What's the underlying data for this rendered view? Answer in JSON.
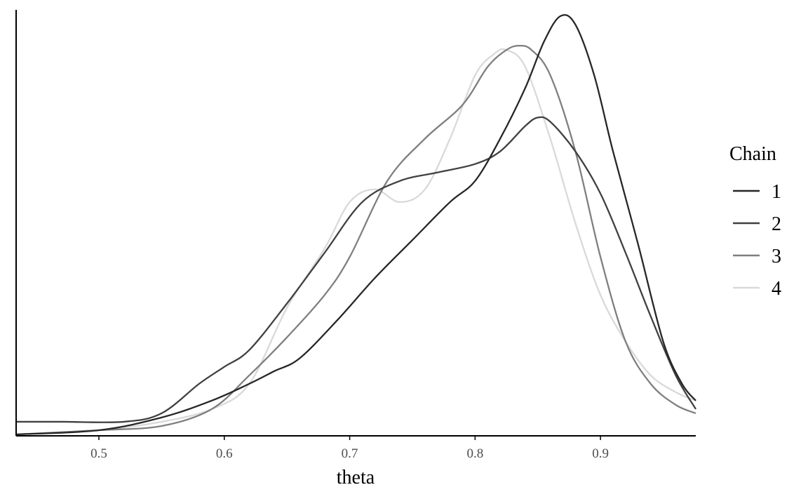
{
  "chart_data": {
    "type": "line",
    "title": "",
    "xlabel": "theta",
    "ylabel": "",
    "xlim": [
      0.434,
      0.976
    ],
    "ylim": [
      0,
      1
    ],
    "x_ticks": [
      "0.5",
      "0.6",
      "0.7",
      "0.8",
      "0.9"
    ],
    "grid": false,
    "legend": {
      "title": "Chain",
      "position": "right"
    },
    "series": [
      {
        "name": "1",
        "color": "#262626",
        "points": [
          [
            0.434,
            0.0
          ],
          [
            0.5,
            0.01
          ],
          [
            0.55,
            0.04
          ],
          [
            0.59,
            0.08
          ],
          [
            0.62,
            0.12
          ],
          [
            0.64,
            0.15
          ],
          [
            0.66,
            0.18
          ],
          [
            0.69,
            0.27
          ],
          [
            0.72,
            0.37
          ],
          [
            0.75,
            0.46
          ],
          [
            0.78,
            0.55
          ],
          [
            0.8,
            0.6
          ],
          [
            0.82,
            0.7
          ],
          [
            0.84,
            0.82
          ],
          [
            0.855,
            0.93
          ],
          [
            0.868,
            0.99
          ],
          [
            0.88,
            0.97
          ],
          [
            0.895,
            0.85
          ],
          [
            0.91,
            0.67
          ],
          [
            0.93,
            0.45
          ],
          [
            0.95,
            0.22
          ],
          [
            0.965,
            0.12
          ],
          [
            0.976,
            0.08
          ]
        ]
      },
      {
        "name": "2",
        "color": "#404040",
        "points": [
          [
            0.434,
            0.03
          ],
          [
            0.47,
            0.03
          ],
          [
            0.52,
            0.03
          ],
          [
            0.55,
            0.05
          ],
          [
            0.58,
            0.12
          ],
          [
            0.6,
            0.16
          ],
          [
            0.62,
            0.2
          ],
          [
            0.65,
            0.31
          ],
          [
            0.68,
            0.43
          ],
          [
            0.71,
            0.55
          ],
          [
            0.74,
            0.6
          ],
          [
            0.77,
            0.62
          ],
          [
            0.8,
            0.64
          ],
          [
            0.82,
            0.67
          ],
          [
            0.84,
            0.73
          ],
          [
            0.85,
            0.75
          ],
          [
            0.86,
            0.74
          ],
          [
            0.88,
            0.67
          ],
          [
            0.9,
            0.57
          ],
          [
            0.92,
            0.43
          ],
          [
            0.94,
            0.28
          ],
          [
            0.96,
            0.14
          ],
          [
            0.976,
            0.06
          ]
        ]
      },
      {
        "name": "3",
        "color": "#7f7f7f",
        "points": [
          [
            0.434,
            0.0
          ],
          [
            0.5,
            0.01
          ],
          [
            0.55,
            0.02
          ],
          [
            0.59,
            0.06
          ],
          [
            0.62,
            0.14
          ],
          [
            0.65,
            0.23
          ],
          [
            0.68,
            0.33
          ],
          [
            0.7,
            0.42
          ],
          [
            0.73,
            0.6
          ],
          [
            0.76,
            0.7
          ],
          [
            0.79,
            0.78
          ],
          [
            0.81,
            0.87
          ],
          [
            0.825,
            0.91
          ],
          [
            0.835,
            0.92
          ],
          [
            0.845,
            0.91
          ],
          [
            0.86,
            0.85
          ],
          [
            0.88,
            0.67
          ],
          [
            0.9,
            0.42
          ],
          [
            0.92,
            0.22
          ],
          [
            0.94,
            0.12
          ],
          [
            0.96,
            0.07
          ],
          [
            0.976,
            0.05
          ]
        ]
      },
      {
        "name": "4",
        "color": "#d9d9d9",
        "points": [
          [
            0.434,
            0.0
          ],
          [
            0.5,
            0.01
          ],
          [
            0.55,
            0.03
          ],
          [
            0.59,
            0.06
          ],
          [
            0.62,
            0.12
          ],
          [
            0.65,
            0.3
          ],
          [
            0.68,
            0.44
          ],
          [
            0.7,
            0.55
          ],
          [
            0.72,
            0.58
          ],
          [
            0.74,
            0.55
          ],
          [
            0.76,
            0.58
          ],
          [
            0.78,
            0.7
          ],
          [
            0.8,
            0.85
          ],
          [
            0.815,
            0.9
          ],
          [
            0.825,
            0.91
          ],
          [
            0.84,
            0.87
          ],
          [
            0.86,
            0.7
          ],
          [
            0.88,
            0.5
          ],
          [
            0.9,
            0.33
          ],
          [
            0.92,
            0.22
          ],
          [
            0.94,
            0.14
          ],
          [
            0.96,
            0.1
          ],
          [
            0.976,
            0.08
          ]
        ]
      }
    ]
  }
}
